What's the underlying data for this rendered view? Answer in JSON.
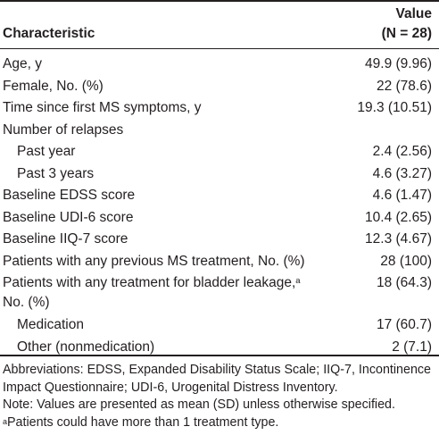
{
  "header": {
    "characteristic": "Characteristic",
    "value_line1": "Value",
    "value_line2": "(N = 28)"
  },
  "rows": [
    {
      "label": "Age, y",
      "value": "49.9 (9.96)"
    },
    {
      "label": "Female, No. (%)",
      "value": "22 (78.6)"
    },
    {
      "label": "Time since first MS symptoms, y",
      "value": "19.3 (10.51)"
    },
    {
      "label": "Number of relapses",
      "value": ""
    },
    {
      "label": "Past year",
      "value": "2.4 (2.56)"
    },
    {
      "label": "Past 3 years",
      "value": "4.6 (3.27)"
    },
    {
      "label": "Baseline EDSS score",
      "value": "4.6 (1.47)"
    },
    {
      "label": "Baseline UDI-6 score",
      "value": "10.4 (2.65)"
    },
    {
      "label": "Baseline IIQ-7 score",
      "value": "12.3 (4.67)"
    },
    {
      "label": "Patients with any previous MS treatment, No. (%)",
      "value": "28 (100)"
    },
    {
      "label": "Patients with any treatment for bladder leakage,",
      "label_sup": "a",
      "label_line2": "No. (%)",
      "value": "18 (64.3)"
    },
    {
      "label": "Medication",
      "value": "17 (60.7)"
    },
    {
      "label": "Other (nonmedication)",
      "value": "2 (7.1)"
    }
  ],
  "notes": {
    "abbreviations": "Abbreviations: EDSS, Expanded Disability Status Scale; IIQ-7, Incontinence Impact Questionnaire; UDI-6, Urogenital Distress Inventory.",
    "note": "Note: Values are presented as mean (SD) unless otherwise specified.",
    "footnote_marker": "a",
    "footnote_text": "Patients could have more than 1 treatment type."
  }
}
